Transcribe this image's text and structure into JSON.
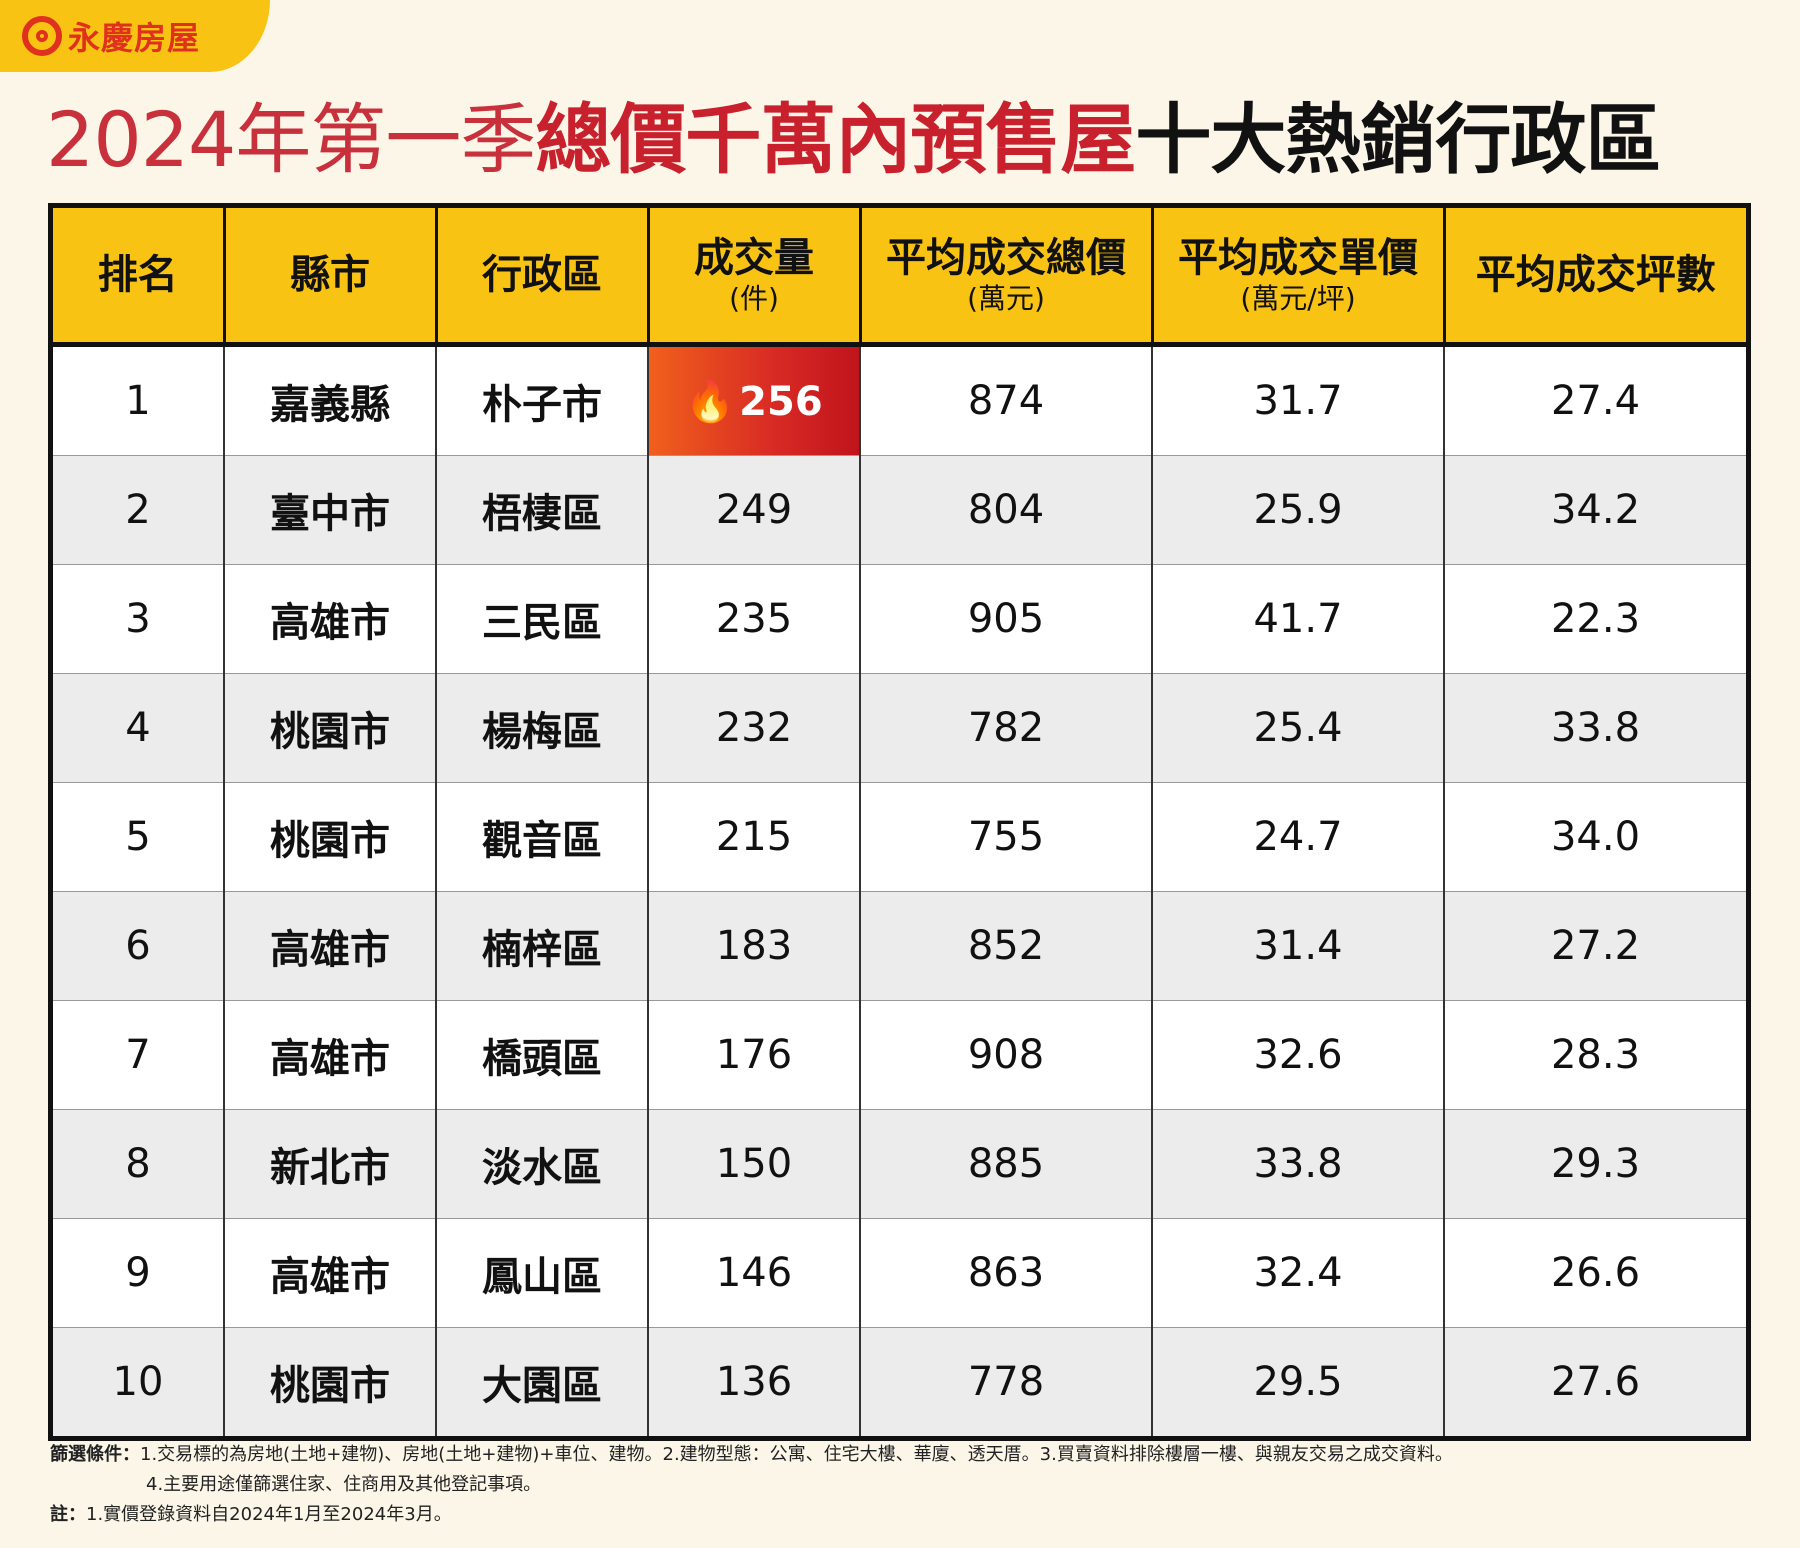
{
  "brand": {
    "name": "永慶房屋"
  },
  "title": {
    "part1": "2024年第一季",
    "part2": "總價千萬內預售屋",
    "part3": "十大熱銷行政區"
  },
  "chart_data": {
    "type": "table",
    "columns": [
      {
        "label": "排名",
        "unit": ""
      },
      {
        "label": "縣市",
        "unit": ""
      },
      {
        "label": "行政區",
        "unit": ""
      },
      {
        "label": "成交量",
        "unit": "(件)"
      },
      {
        "label": "平均成交總價",
        "unit": "(萬元)"
      },
      {
        "label": "平均成交單價",
        "unit": "(萬元/坪)"
      },
      {
        "label": "平均成交坪數",
        "unit": ""
      }
    ],
    "rows": [
      {
        "rank": "1",
        "city": "嘉義縣",
        "district": "朴子市",
        "volume": "256",
        "total_price": "874",
        "unit_price": "31.7",
        "area": "27.4"
      },
      {
        "rank": "2",
        "city": "臺中市",
        "district": "梧棲區",
        "volume": "249",
        "total_price": "804",
        "unit_price": "25.9",
        "area": "34.2"
      },
      {
        "rank": "3",
        "city": "高雄市",
        "district": "三民區",
        "volume": "235",
        "total_price": "905",
        "unit_price": "41.7",
        "area": "22.3"
      },
      {
        "rank": "4",
        "city": "桃園市",
        "district": "楊梅區",
        "volume": "232",
        "total_price": "782",
        "unit_price": "25.4",
        "area": "33.8"
      },
      {
        "rank": "5",
        "city": "桃園市",
        "district": "觀音區",
        "volume": "215",
        "total_price": "755",
        "unit_price": "24.7",
        "area": "34.0"
      },
      {
        "rank": "6",
        "city": "高雄市",
        "district": "楠梓區",
        "volume": "183",
        "total_price": "852",
        "unit_price": "31.4",
        "area": "27.2"
      },
      {
        "rank": "7",
        "city": "高雄市",
        "district": "橋頭區",
        "volume": "176",
        "total_price": "908",
        "unit_price": "32.6",
        "area": "28.3"
      },
      {
        "rank": "8",
        "city": "新北市",
        "district": "淡水區",
        "volume": "150",
        "total_price": "885",
        "unit_price": "33.8",
        "area": "29.3"
      },
      {
        "rank": "9",
        "city": "高雄市",
        "district": "鳳山區",
        "volume": "146",
        "total_price": "863",
        "unit_price": "32.4",
        "area": "26.6"
      },
      {
        "rank": "10",
        "city": "桃園市",
        "district": "大園區",
        "volume": "136",
        "total_price": "778",
        "unit_price": "29.5",
        "area": "27.6"
      }
    ]
  },
  "colors": {
    "header_bg": "#f8c313",
    "hot_cell_from": "#f0601c",
    "hot_cell_to": "#c0141c",
    "title_red": "#c8202c",
    "alt_row": "#ececec",
    "page_bg": "#fbf6e8"
  },
  "notes": {
    "filter_label": "篩選條件：",
    "filter_line1": "1.交易標的為房地(土地+建物)、房地(土地+建物)+車位、建物。2.建物型態：公寓、住宅大樓、華廈、透天厝。3.買賣資料排除樓層一樓、與親友交易之成交資料。",
    "filter_line2": "4.主要用途僅篩選住家、住商用及其他登記事項。",
    "note_label": "註：",
    "note_line1": "1.實價登錄資料自2024年1月至2024年3月。"
  }
}
